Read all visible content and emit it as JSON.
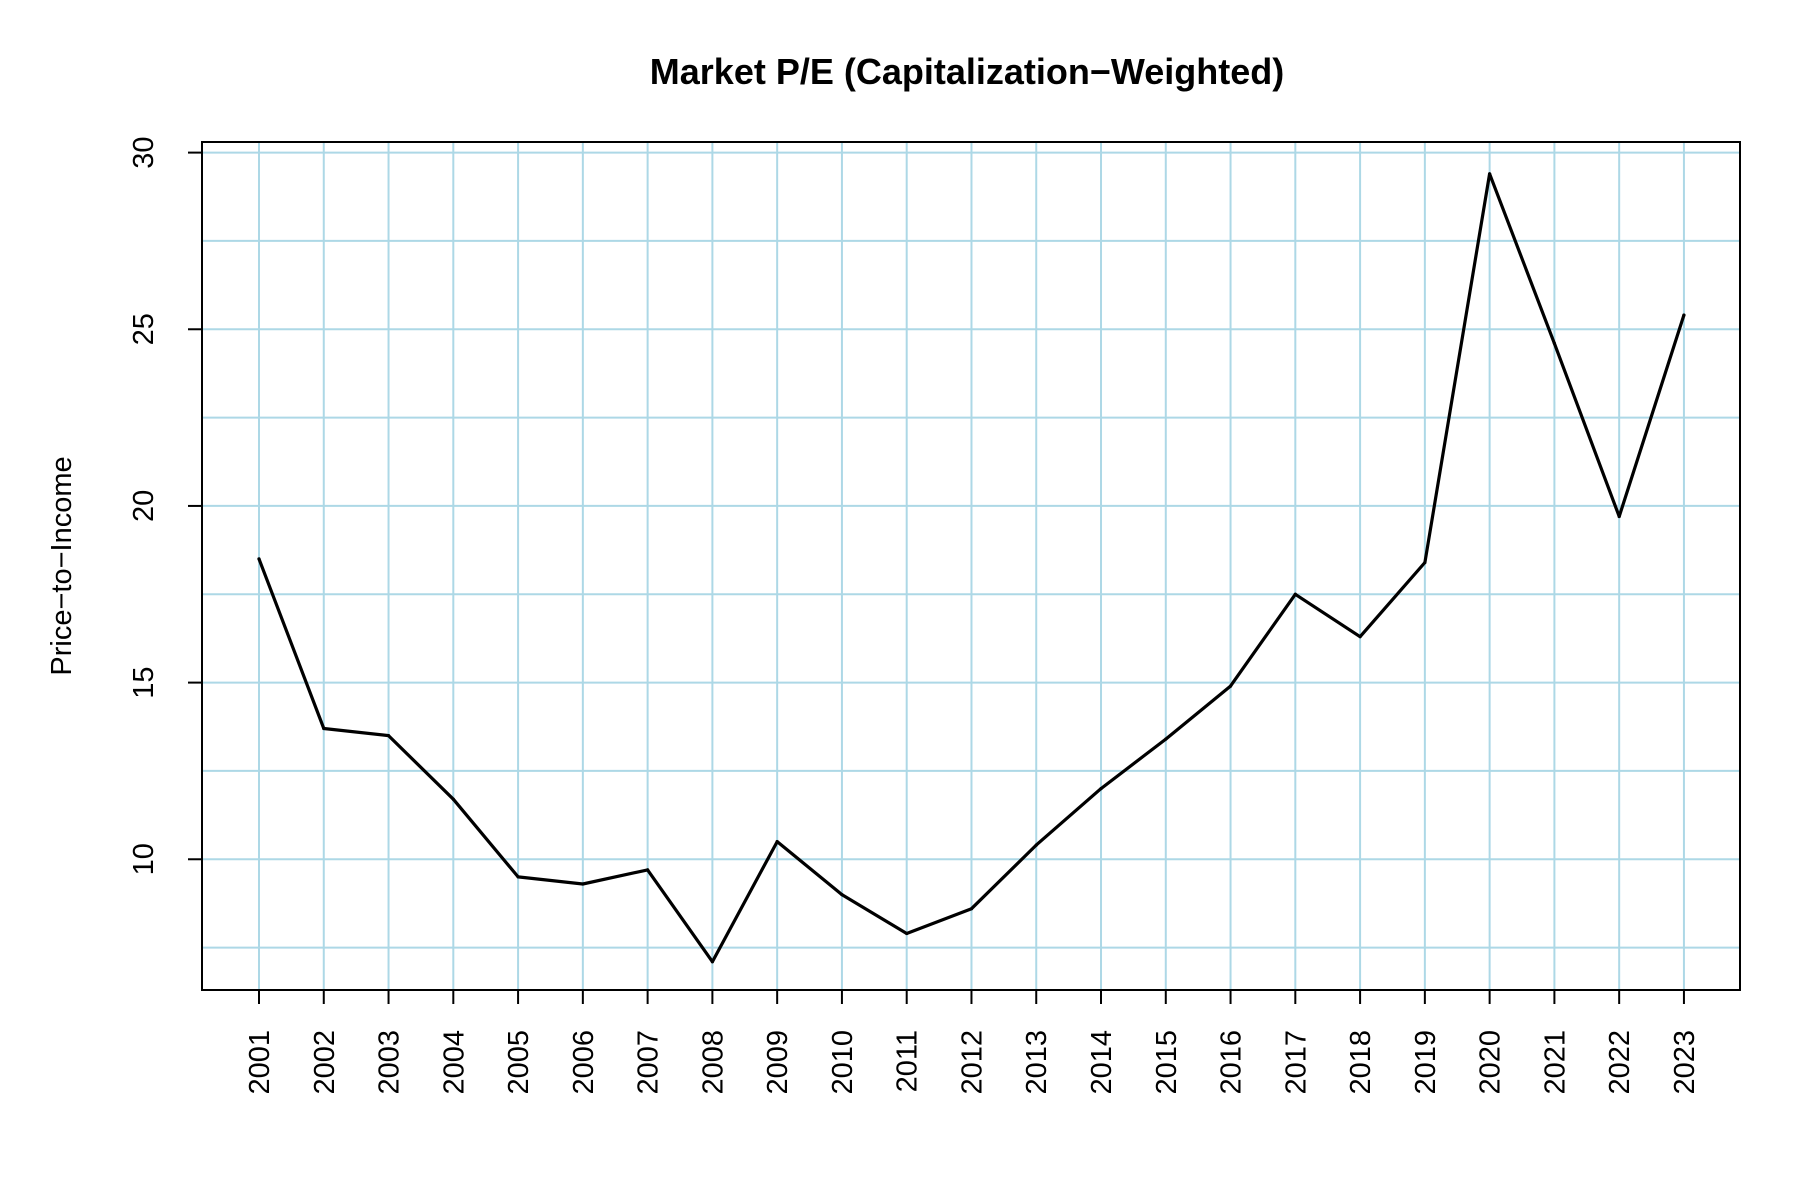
{
  "chart_data": {
    "type": "line",
    "title": "Market P/E (Capitalization−Weighted)",
    "xlabel": "",
    "ylabel": "Price−to−Income",
    "categories": [
      "2001",
      "2002",
      "2003",
      "2004",
      "2005",
      "2006",
      "2007",
      "2008",
      "2009",
      "2010",
      "2011",
      "2012",
      "2013",
      "2014",
      "2015",
      "2016",
      "2017",
      "2018",
      "2019",
      "2020",
      "2021",
      "2022",
      "2023"
    ],
    "series": [
      {
        "values": [
          18.5,
          13.7,
          13.5,
          11.7,
          9.5,
          9.3,
          9.7,
          7.1,
          10.5,
          9.0,
          7.9,
          8.6,
          10.4,
          12.0,
          13.4,
          14.9,
          17.5,
          16.3,
          18.4,
          29.4,
          24.6,
          19.7,
          25.4
        ],
        "color": "#000000"
      }
    ],
    "yticks": [
      10,
      15,
      20,
      25,
      30
    ],
    "ylim": [
      6.3,
      30.3
    ],
    "grid": true,
    "grid_color": "#add8e6",
    "line_color": "#000000",
    "legend": "none"
  }
}
